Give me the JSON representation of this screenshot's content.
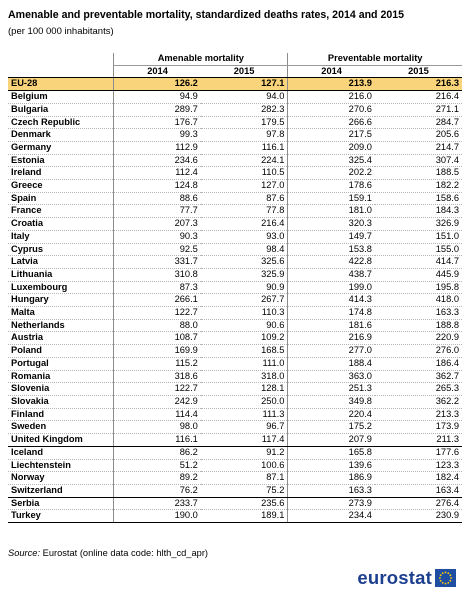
{
  "title": "Amenable and preventable mortality, standardized deaths rates, 2014 and 2015",
  "subtitle": "(per 100 000 inhabitants)",
  "columns": {
    "group1": "Amenable mortality",
    "group2": "Preventable mortality",
    "years": [
      "2014",
      "2015",
      "2014",
      "2015"
    ]
  },
  "rows": [
    {
      "name": "EU-28",
      "v": [
        "126.2",
        "127.1",
        "213.9",
        "216.3"
      ]
    },
    {
      "name": "Belgium",
      "v": [
        "94.9",
        "94.0",
        "216.0",
        "216.4"
      ]
    },
    {
      "name": "Bulgaria",
      "v": [
        "289.7",
        "282.3",
        "270.6",
        "271.1"
      ]
    },
    {
      "name": "Czech Republic",
      "v": [
        "176.7",
        "179.5",
        "266.6",
        "284.7"
      ]
    },
    {
      "name": "Denmark",
      "v": [
        "99.3",
        "97.8",
        "217.5",
        "205.6"
      ]
    },
    {
      "name": "Germany",
      "v": [
        "112.9",
        "116.1",
        "209.0",
        "214.7"
      ]
    },
    {
      "name": "Estonia",
      "v": [
        "234.6",
        "224.1",
        "325.4",
        "307.4"
      ]
    },
    {
      "name": "Ireland",
      "v": [
        "112.4",
        "110.5",
        "202.2",
        "188.5"
      ]
    },
    {
      "name": "Greece",
      "v": [
        "124.8",
        "127.0",
        "178.6",
        "182.2"
      ]
    },
    {
      "name": "Spain",
      "v": [
        "88.6",
        "87.6",
        "159.1",
        "158.6"
      ]
    },
    {
      "name": "France",
      "v": [
        "77.7",
        "77.8",
        "181.0",
        "184.3"
      ]
    },
    {
      "name": "Croatia",
      "v": [
        "207.3",
        "216.4",
        "320.3",
        "326.9"
      ]
    },
    {
      "name": "Italy",
      "v": [
        "90.3",
        "93.0",
        "149.7",
        "151.0"
      ]
    },
    {
      "name": "Cyprus",
      "v": [
        "92.5",
        "98.4",
        "153.8",
        "155.0"
      ]
    },
    {
      "name": "Latvia",
      "v": [
        "331.7",
        "325.6",
        "422.8",
        "414.7"
      ]
    },
    {
      "name": "Lithuania",
      "v": [
        "310.8",
        "325.9",
        "438.7",
        "445.9"
      ]
    },
    {
      "name": "Luxembourg",
      "v": [
        "87.3",
        "90.9",
        "199.0",
        "195.8"
      ]
    },
    {
      "name": "Hungary",
      "v": [
        "266.1",
        "267.7",
        "414.3",
        "418.0"
      ]
    },
    {
      "name": "Malta",
      "v": [
        "122.7",
        "110.3",
        "174.8",
        "163.3"
      ]
    },
    {
      "name": "Netherlands",
      "v": [
        "88.0",
        "90.6",
        "181.6",
        "188.8"
      ]
    },
    {
      "name": "Austria",
      "v": [
        "108.7",
        "109.2",
        "216.9",
        "220.9"
      ]
    },
    {
      "name": "Poland",
      "v": [
        "169.9",
        "168.5",
        "277.0",
        "276.0"
      ]
    },
    {
      "name": "Portugal",
      "v": [
        "115.2",
        "111.0",
        "188.4",
        "186.4"
      ]
    },
    {
      "name": "Romania",
      "v": [
        "318.6",
        "318.0",
        "363.0",
        "362.7"
      ]
    },
    {
      "name": "Slovenia",
      "v": [
        "122.7",
        "128.1",
        "251.3",
        "265.3"
      ]
    },
    {
      "name": "Slovakia",
      "v": [
        "242.9",
        "250.0",
        "349.8",
        "362.2"
      ]
    },
    {
      "name": "Finland",
      "v": [
        "114.4",
        "111.3",
        "220.4",
        "213.3"
      ]
    },
    {
      "name": "Sweden",
      "v": [
        "98.0",
        "96.7",
        "175.2",
        "173.9"
      ]
    },
    {
      "name": "United Kingdom",
      "v": [
        "116.1",
        "117.4",
        "207.9",
        "211.3"
      ]
    },
    {
      "name": "Iceland",
      "v": [
        "86.2",
        "91.2",
        "165.8",
        "177.6"
      ]
    },
    {
      "name": "Liechtenstein",
      "v": [
        "51.2",
        "100.6",
        "139.6",
        "123.3"
      ]
    },
    {
      "name": "Norway",
      "v": [
        "89.2",
        "87.1",
        "186.9",
        "182.4"
      ]
    },
    {
      "name": "Switzerland",
      "v": [
        "76.2",
        "75.2",
        "163.3",
        "163.4"
      ]
    },
    {
      "name": "Serbia",
      "v": [
        "233.7",
        "235.6",
        "273.9",
        "276.4"
      ]
    },
    {
      "name": "Turkey",
      "v": [
        "190.0",
        "189.1",
        "234.4",
        "230.9"
      ]
    }
  ],
  "source": {
    "label": "Source:",
    "text": " Eurostat (online data code: hlth_cd_apr)"
  },
  "logo": {
    "text": "eurostat",
    "color": "#1d3f8f",
    "flag_color": "#1f4ea3",
    "star_color": "#ffd200"
  },
  "colors": {
    "eu_row": "#f9d47a"
  }
}
